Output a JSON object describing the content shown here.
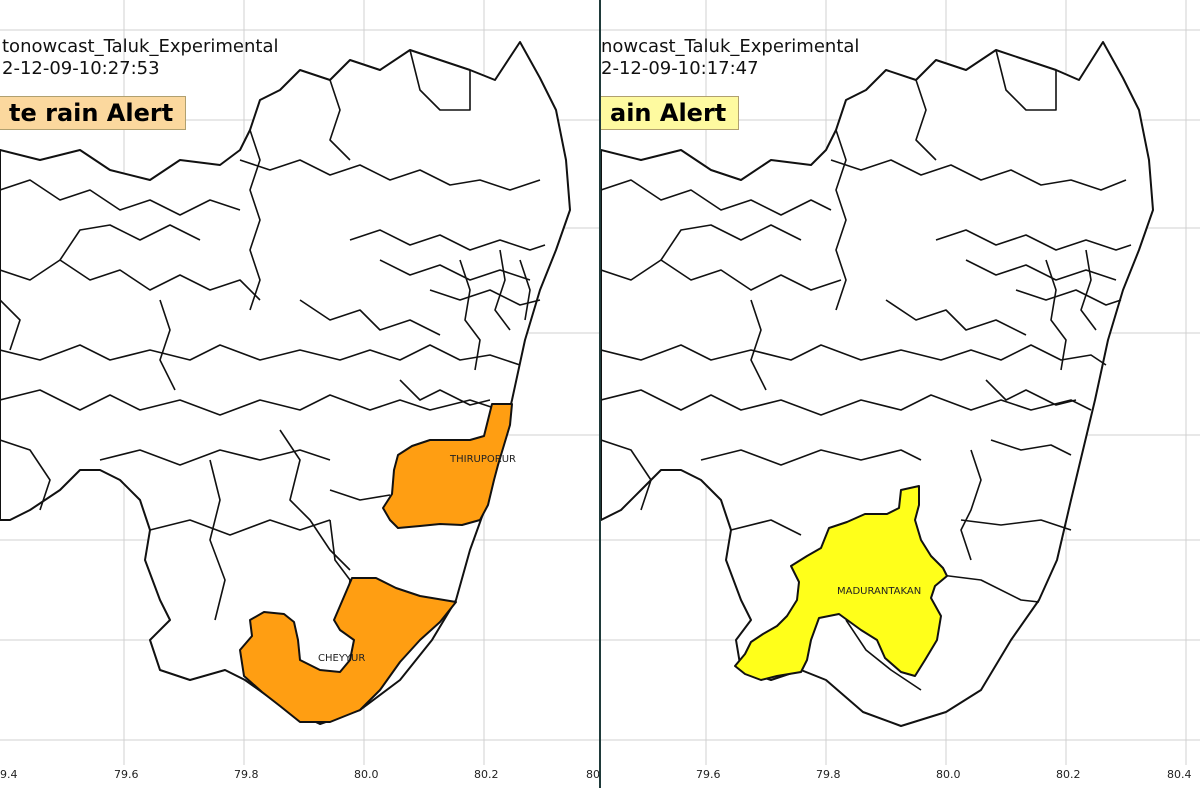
{
  "panels": [
    {
      "title": "tonowcast_Taluk_Experimental",
      "timestamp": "2-12-09-10:27:53",
      "alert_label": "te rain Alert",
      "alert_color": "#fbd89e",
      "highlight_color": "#ff9e12",
      "regions": [
        "THIRUPORUR",
        "CHEYYUR"
      ],
      "xticks": [
        "9.4",
        "79.6",
        "79.8",
        "80.0",
        "80.2",
        "80"
      ]
    },
    {
      "title": "nowcast_Taluk_Experimental",
      "timestamp": "2-12-09-10:17:47",
      "alert_label": "ain Alert",
      "alert_color": "#fefaa0",
      "highlight_color": "#ffff1a",
      "regions": [
        "MADURANTAKAN"
      ],
      "xticks": [
        "79.6",
        "79.8",
        "80.0",
        "80.2",
        "80.4"
      ]
    }
  ],
  "colors": {
    "outline": "#111111",
    "grid": "#cfcfcf",
    "divider": "#1f3a3a"
  }
}
